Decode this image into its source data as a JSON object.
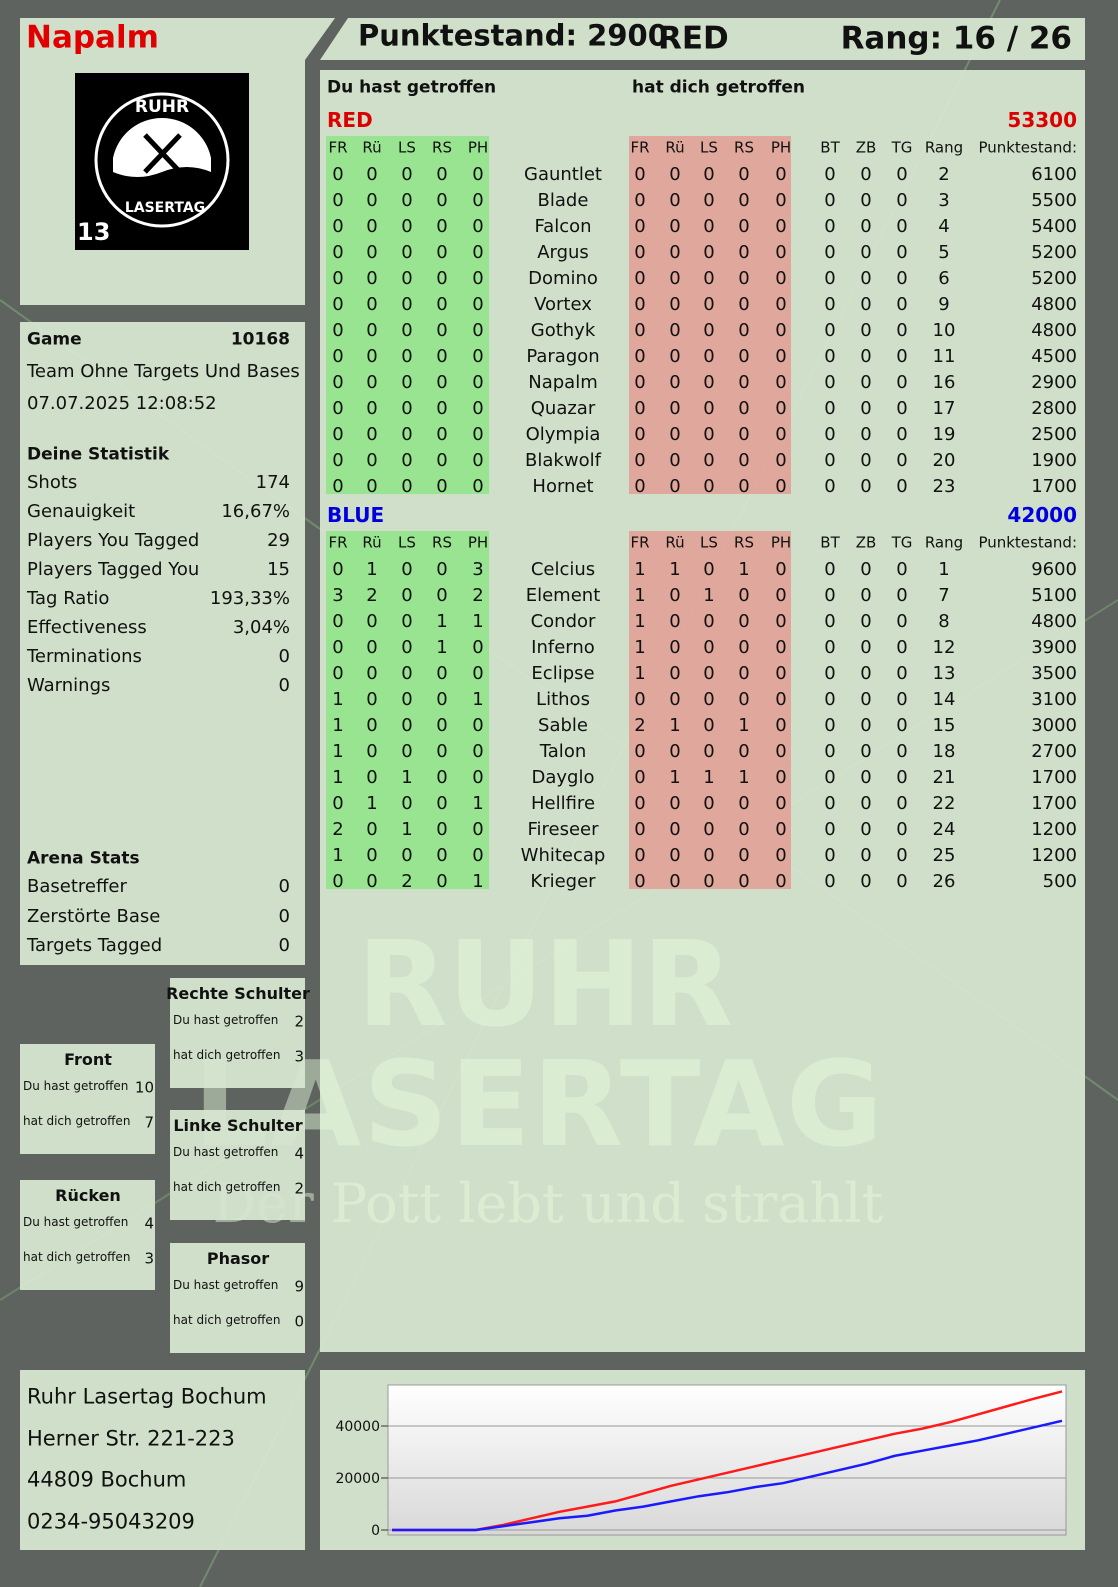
{
  "header": {
    "player": "Napalm",
    "score": "Punktestand: 2900",
    "team": "RED",
    "rank": "Rang: 16 / 26"
  },
  "logo": {
    "top": "RUHR",
    "bottom": "LASERTAG",
    "number": "13"
  },
  "game": {
    "label": "Game",
    "number": 10168,
    "mode": "Team Ohne Targets Und Bases",
    "datetime": "07.07.2025 12:08:52"
  },
  "statistics": {
    "title": "Deine Statistik",
    "rows": [
      [
        "Shots",
        174
      ],
      [
        "Genauigkeit",
        "16,67%"
      ],
      [
        "Players You Tagged",
        29
      ],
      [
        "Players Tagged You",
        15
      ],
      [
        "Tag Ratio",
        "193,33%"
      ],
      [
        "Effectiveness",
        "3,04%"
      ],
      [
        "Terminations",
        0
      ],
      [
        "Warnings",
        0
      ]
    ]
  },
  "arena": {
    "title": "Arena Stats",
    "rows": [
      [
        "Basetreffer",
        0
      ],
      [
        "Zerstörte Base",
        0
      ],
      [
        "Targets Tagged",
        0
      ]
    ]
  },
  "zones": [
    {
      "title": "Rechte Schulter",
      "rows": [
        [
          "Du hast getroffen",
          2
        ],
        [
          "hat dich getroffen",
          3
        ]
      ]
    },
    {
      "title": "Front",
      "rows": [
        [
          "Du hast getroffen",
          10
        ],
        [
          "hat dich getroffen",
          7
        ]
      ]
    },
    {
      "title": "Linke Schulter",
      "rows": [
        [
          "Du hast getroffen",
          4
        ],
        [
          "hat dich getroffen",
          2
        ]
      ]
    },
    {
      "title": "Rücken",
      "rows": [
        [
          "Du hast getroffen",
          4
        ],
        [
          "hat dich getroffen",
          3
        ]
      ]
    },
    {
      "title": "Phasor",
      "rows": [
        [
          "Du hast getroffen",
          9
        ],
        [
          "hat dich getroffen",
          0
        ]
      ]
    }
  ],
  "address": [
    "Ruhr Lasertag Bochum",
    "Herner Str. 221-223",
    "44809 Bochum",
    "0234-95043209"
  ],
  "watermark": {
    "line1": "RUHR",
    "line2": "LASERTAG",
    "slogan": "Der Pott lebt und strahlt"
  },
  "table": {
    "given_heading": "Du hast getroffen",
    "received_heading": "hat dich getroffen",
    "given_cols": [
      "FR",
      "Rü",
      "LS",
      "RS",
      "PH"
    ],
    "received_cols": [
      "FR",
      "Rü",
      "LS",
      "RS",
      "PH"
    ],
    "stat_cols": [
      "BT",
      "ZB",
      "TG",
      "Rang",
      "Punktestand:"
    ],
    "teams": [
      {
        "name": "RED",
        "total": 53300,
        "players": [
          {
            "name": "Gauntlet",
            "given": [
              0,
              0,
              0,
              0,
              0
            ],
            "received": [
              0,
              0,
              0,
              0,
              0
            ],
            "stats": [
              0,
              0,
              0,
              2,
              6100
            ]
          },
          {
            "name": "Blade",
            "given": [
              0,
              0,
              0,
              0,
              0
            ],
            "received": [
              0,
              0,
              0,
              0,
              0
            ],
            "stats": [
              0,
              0,
              0,
              3,
              5500
            ]
          },
          {
            "name": "Falcon",
            "given": [
              0,
              0,
              0,
              0,
              0
            ],
            "received": [
              0,
              0,
              0,
              0,
              0
            ],
            "stats": [
              0,
              0,
              0,
              4,
              5400
            ]
          },
          {
            "name": "Argus",
            "given": [
              0,
              0,
              0,
              0,
              0
            ],
            "received": [
              0,
              0,
              0,
              0,
              0
            ],
            "stats": [
              0,
              0,
              0,
              5,
              5200
            ]
          },
          {
            "name": "Domino",
            "given": [
              0,
              0,
              0,
              0,
              0
            ],
            "received": [
              0,
              0,
              0,
              0,
              0
            ],
            "stats": [
              0,
              0,
              0,
              6,
              5200
            ]
          },
          {
            "name": "Vortex",
            "given": [
              0,
              0,
              0,
              0,
              0
            ],
            "received": [
              0,
              0,
              0,
              0,
              0
            ],
            "stats": [
              0,
              0,
              0,
              9,
              4800
            ]
          },
          {
            "name": "Gothyk",
            "given": [
              0,
              0,
              0,
              0,
              0
            ],
            "received": [
              0,
              0,
              0,
              0,
              0
            ],
            "stats": [
              0,
              0,
              0,
              10,
              4800
            ]
          },
          {
            "name": "Paragon",
            "given": [
              0,
              0,
              0,
              0,
              0
            ],
            "received": [
              0,
              0,
              0,
              0,
              0
            ],
            "stats": [
              0,
              0,
              0,
              11,
              4500
            ]
          },
          {
            "name": "Napalm",
            "given": [
              0,
              0,
              0,
              0,
              0
            ],
            "received": [
              0,
              0,
              0,
              0,
              0
            ],
            "stats": [
              0,
              0,
              0,
              16,
              2900
            ]
          },
          {
            "name": "Quazar",
            "given": [
              0,
              0,
              0,
              0,
              0
            ],
            "received": [
              0,
              0,
              0,
              0,
              0
            ],
            "stats": [
              0,
              0,
              0,
              17,
              2800
            ]
          },
          {
            "name": "Olympia",
            "given": [
              0,
              0,
              0,
              0,
              0
            ],
            "received": [
              0,
              0,
              0,
              0,
              0
            ],
            "stats": [
              0,
              0,
              0,
              19,
              2500
            ]
          },
          {
            "name": "Blakwolf",
            "given": [
              0,
              0,
              0,
              0,
              0
            ],
            "received": [
              0,
              0,
              0,
              0,
              0
            ],
            "stats": [
              0,
              0,
              0,
              20,
              1900
            ]
          },
          {
            "name": "Hornet",
            "given": [
              0,
              0,
              0,
              0,
              0
            ],
            "received": [
              0,
              0,
              0,
              0,
              0
            ],
            "stats": [
              0,
              0,
              0,
              23,
              1700
            ]
          }
        ]
      },
      {
        "name": "BLUE",
        "total": 42000,
        "players": [
          {
            "name": "Celcius",
            "given": [
              0,
              1,
              0,
              0,
              3
            ],
            "received": [
              1,
              1,
              0,
              1,
              0
            ],
            "stats": [
              0,
              0,
              0,
              1,
              9600
            ]
          },
          {
            "name": "Element",
            "given": [
              3,
              2,
              0,
              0,
              2
            ],
            "received": [
              1,
              0,
              1,
              0,
              0
            ],
            "stats": [
              0,
              0,
              0,
              7,
              5100
            ]
          },
          {
            "name": "Condor",
            "given": [
              0,
              0,
              0,
              1,
              1
            ],
            "received": [
              1,
              0,
              0,
              0,
              0
            ],
            "stats": [
              0,
              0,
              0,
              8,
              4800
            ]
          },
          {
            "name": "Inferno",
            "given": [
              0,
              0,
              0,
              1,
              0
            ],
            "received": [
              1,
              0,
              0,
              0,
              0
            ],
            "stats": [
              0,
              0,
              0,
              12,
              3900
            ]
          },
          {
            "name": "Eclipse",
            "given": [
              0,
              0,
              0,
              0,
              0
            ],
            "received": [
              1,
              0,
              0,
              0,
              0
            ],
            "stats": [
              0,
              0,
              0,
              13,
              3500
            ]
          },
          {
            "name": "Lithos",
            "given": [
              1,
              0,
              0,
              0,
              1
            ],
            "received": [
              0,
              0,
              0,
              0,
              0
            ],
            "stats": [
              0,
              0,
              0,
              14,
              3100
            ]
          },
          {
            "name": "Sable",
            "given": [
              1,
              0,
              0,
              0,
              0
            ],
            "received": [
              2,
              1,
              0,
              1,
              0
            ],
            "stats": [
              0,
              0,
              0,
              15,
              3000
            ]
          },
          {
            "name": "Talon",
            "given": [
              1,
              0,
              0,
              0,
              0
            ],
            "received": [
              0,
              0,
              0,
              0,
              0
            ],
            "stats": [
              0,
              0,
              0,
              18,
              2700
            ]
          },
          {
            "name": "Dayglo",
            "given": [
              1,
              0,
              1,
              0,
              0
            ],
            "received": [
              0,
              1,
              1,
              1,
              0
            ],
            "stats": [
              0,
              0,
              0,
              21,
              1700
            ]
          },
          {
            "name": "Hellfire",
            "given": [
              0,
              1,
              0,
              0,
              1
            ],
            "received": [
              0,
              0,
              0,
              0,
              0
            ],
            "stats": [
              0,
              0,
              0,
              22,
              1700
            ]
          },
          {
            "name": "Fireseer",
            "given": [
              2,
              0,
              1,
              0,
              0
            ],
            "received": [
              0,
              0,
              0,
              0,
              0
            ],
            "stats": [
              0,
              0,
              0,
              24,
              1200
            ]
          },
          {
            "name": "Whitecap",
            "given": [
              1,
              0,
              0,
              0,
              0
            ],
            "received": [
              0,
              0,
              0,
              0,
              0
            ],
            "stats": [
              0,
              0,
              0,
              25,
              1200
            ]
          },
          {
            "name": "Krieger",
            "given": [
              0,
              0,
              2,
              0,
              1
            ],
            "received": [
              0,
              0,
              0,
              0,
              0
            ],
            "stats": [
              0,
              0,
              0,
              26,
              500
            ]
          }
        ]
      }
    ]
  },
  "chart_data": {
    "type": "line",
    "categories": [
      null,
      null,
      null,
      null,
      null,
      null,
      null,
      null,
      null,
      null,
      null,
      null,
      null,
      null,
      null,
      null,
      null,
      null,
      null,
      null,
      null,
      null,
      null,
      null,
      null
    ],
    "series": [
      {
        "color": "#ff1a1a",
        "values": [
          0,
          0,
          0,
          0,
          2000,
          4500,
          7000,
          9000,
          11000,
          14000,
          17000,
          19500,
          22000,
          24500,
          27000,
          29500,
          32000,
          34500,
          37000,
          39000,
          41500,
          44500,
          47500,
          50500,
          53300
        ]
      },
      {
        "color": "#1a1aff",
        "values": [
          0,
          0,
          0,
          0,
          1500,
          3000,
          4500,
          5500,
          7500,
          9000,
          11000,
          13000,
          14500,
          16500,
          18000,
          20500,
          23000,
          25500,
          28500,
          30500,
          32500,
          34500,
          37000,
          39500,
          42000
        ]
      }
    ],
    "ylim": [
      0,
      55000
    ],
    "yticks": [
      0,
      20000,
      40000
    ],
    "grid": true
  }
}
